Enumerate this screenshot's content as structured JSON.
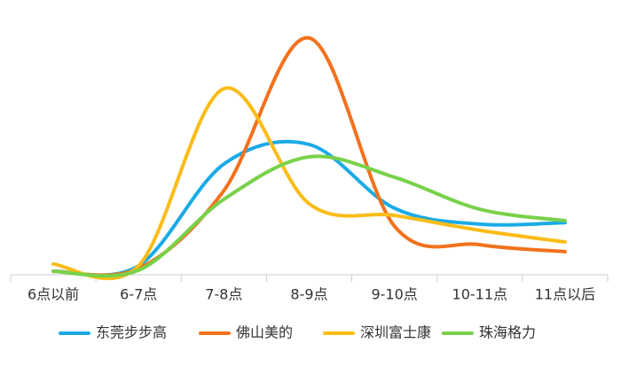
{
  "chart_data": {
    "type": "line",
    "categories": [
      "6点以前",
      "6-7点",
      "7-8点",
      "8-9点",
      "9-10点",
      "10-11点",
      "11点以后"
    ],
    "series": [
      {
        "name": "东莞步步高",
        "color": "#1aabe6",
        "values": [
          1.4,
          3.6,
          44.6,
          52.5,
          26.8,
          20.4,
          21
        ]
      },
      {
        "name": "佛山美的",
        "color": "#f2711c",
        "values": [
          1.4,
          2.5,
          33.9,
          95.4,
          19.6,
          12.1,
          9.3
        ]
      },
      {
        "name": "深圳富士康",
        "color": "#fbbc17",
        "values": [
          4.3,
          3.6,
          75,
          28.6,
          23.9,
          17.9,
          13.2
        ]
      },
      {
        "name": "珠海格力",
        "color": "#78d14a",
        "values": [
          1.4,
          1.8,
          30.4,
          47.5,
          39.3,
          26.4,
          21.8
        ]
      }
    ],
    "ylim": [
      0,
      100
    ],
    "legend": "bottom"
  }
}
